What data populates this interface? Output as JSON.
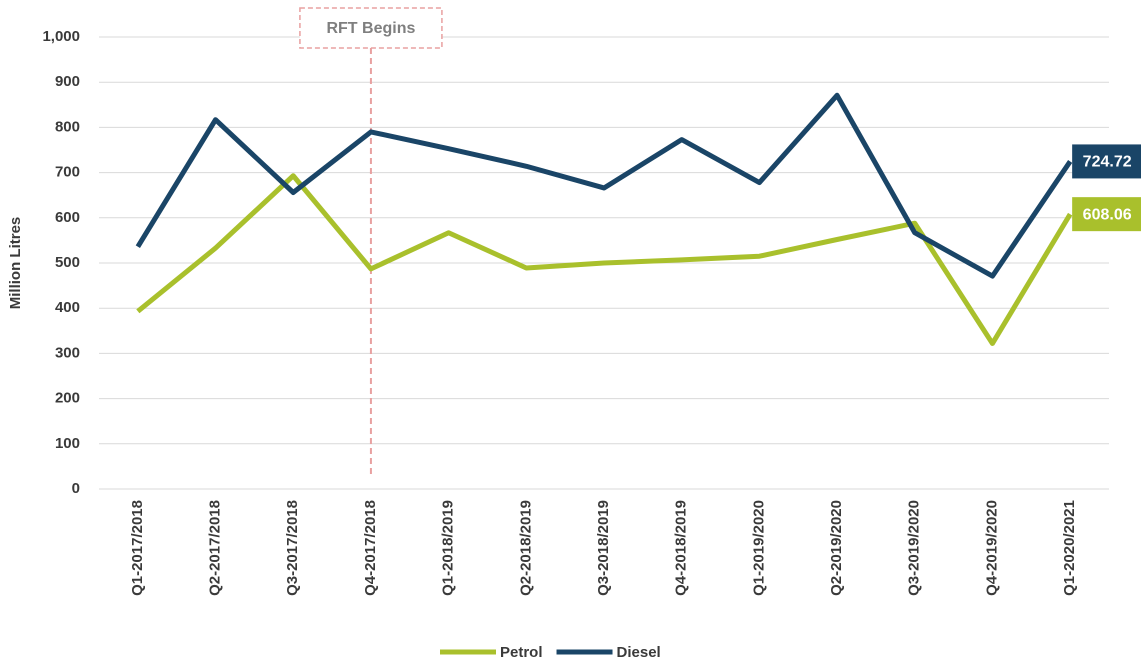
{
  "chart_data": {
    "type": "line",
    "y_label": "Million Litres",
    "categories": [
      "Q1-2017/2018",
      "Q2-2017/2018",
      "Q3-2017/2018",
      "Q4-2017/2018",
      "Q1-2018/2019",
      "Q2-2018/2019",
      "Q3-2018/2019",
      "Q4-2018/2019",
      "Q1-2019/2020",
      "Q2-2019/2020",
      "Q3-2019/2020",
      "Q4-2019/2020",
      "Q1-2020/2021"
    ],
    "series": [
      {
        "name": "Petrol",
        "color": "#a9c02c",
        "values": [
          393,
          533,
          693,
          487,
          567,
          489,
          500,
          507,
          515,
          552,
          588,
          322,
          608.06
        ]
      },
      {
        "name": "Diesel",
        "color": "#1a4567",
        "values": [
          536,
          817,
          656,
          790,
          753,
          714,
          666,
          773,
          678,
          871,
          567,
          471,
          724.72
        ]
      }
    ],
    "ylim": [
      0,
      1000
    ],
    "yticks": [
      0,
      100,
      200,
      300,
      400,
      500,
      600,
      700,
      800,
      900,
      {
        "value": 1000,
        "label": "1,000"
      }
    ],
    "grid": true,
    "legend": "bottom",
    "annotation": {
      "label": "RFT Begins",
      "x": "Q4-2017/2018"
    }
  }
}
